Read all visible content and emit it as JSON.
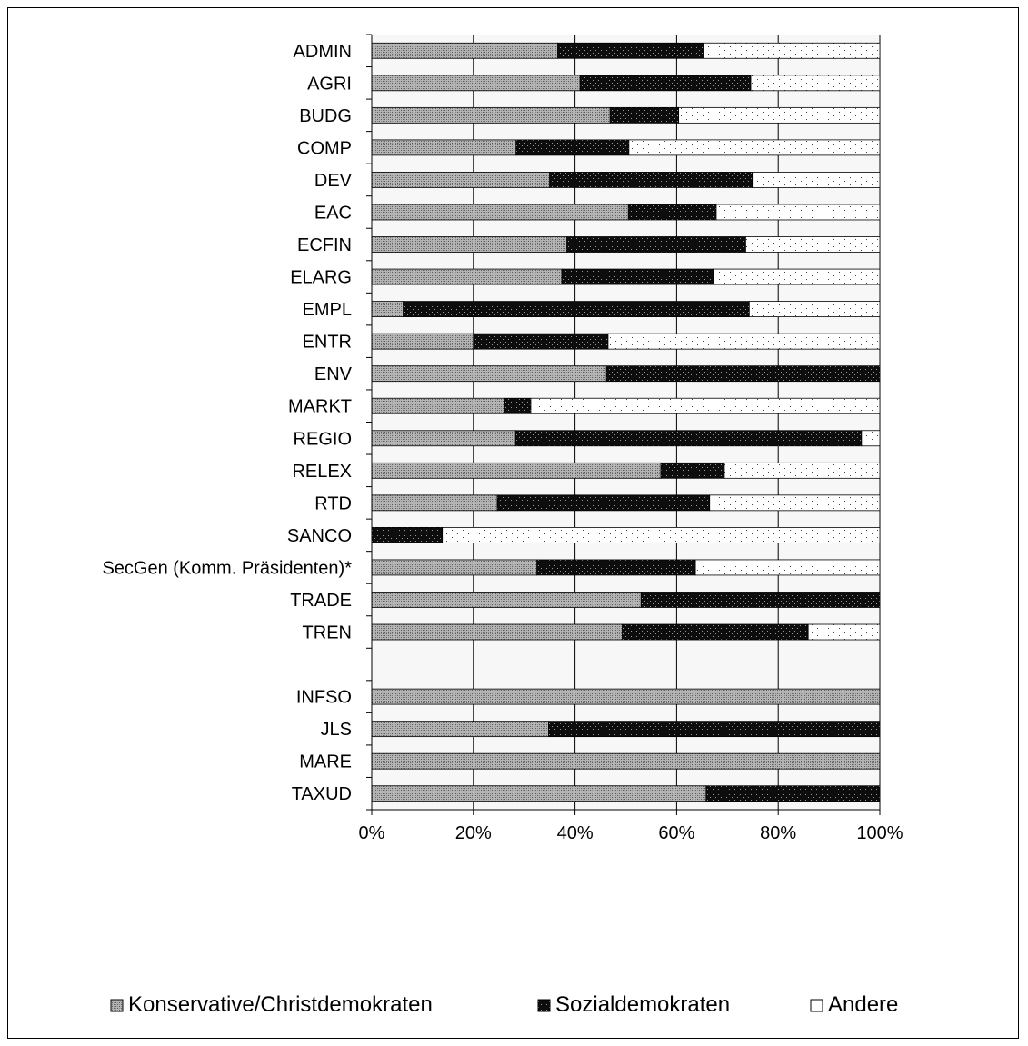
{
  "chart_data": {
    "type": "bar",
    "orientation": "horizontal",
    "stacked": "percent",
    "title": "",
    "xlabel": "",
    "ylabel": "",
    "xlim": [
      0,
      100
    ],
    "xticks": [
      "0%",
      "20%",
      "40%",
      "60%",
      "80%",
      "100%"
    ],
    "grid": "vertical",
    "legend_position": "bottom",
    "categories": [
      "ADMIN",
      "AGRI",
      "BUDG",
      "COMP",
      "DEV",
      "EAC",
      "ECFIN",
      "ELARG",
      "EMPL",
      "ENTR",
      "ENV",
      "MARKT",
      "REGIO",
      "RELEX",
      "RTD",
      "SANCO",
      "SecGen (Komm. Präsidenten)*",
      "TRADE",
      "TREN",
      "",
      "INFSO",
      "JLS",
      "MARE",
      "TAXUD"
    ],
    "series": [
      {
        "name": "Konservative/Christdemokraten",
        "color": "#a8a8a8",
        "pattern": "crosshatch",
        "values": [
          36.6,
          41,
          46.9,
          28.4,
          35,
          50.5,
          38.4,
          37.4,
          6.2,
          20,
          46.2,
          26.1,
          28.3,
          56.9,
          24.7,
          0,
          32.5,
          53,
          49.3,
          null,
          100,
          34.8,
          100,
          65.8
        ]
      },
      {
        "name": "Sozialdemokraten",
        "color": "#111111",
        "pattern": "dotted-dark",
        "values": [
          28.8,
          33.6,
          13.5,
          22.2,
          39.9,
          17.3,
          35.2,
          29.8,
          68.1,
          26.5,
          53.8,
          5.2,
          68.1,
          12.5,
          41.8,
          13.9,
          31.2,
          47,
          36.6,
          null,
          0,
          65.2,
          0,
          34.2
        ]
      },
      {
        "name": "Andere",
        "color": "#ffffff",
        "pattern": "dotted-light",
        "values": [
          34.6,
          25.4,
          39.6,
          49.4,
          25.1,
          32.2,
          26.4,
          32.8,
          25.7,
          53.5,
          0,
          68.7,
          3.6,
          30.6,
          33.5,
          86.1,
          36.3,
          0,
          14.1,
          null,
          0,
          0,
          0,
          0
        ]
      }
    ]
  }
}
